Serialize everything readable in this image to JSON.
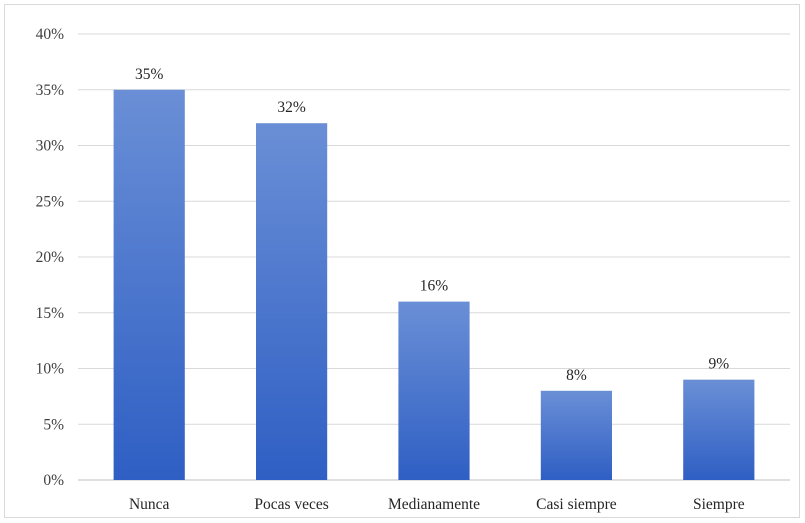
{
  "chart_data": {
    "type": "bar",
    "categories": [
      "Nunca",
      "Pocas veces",
      "Medianamente",
      "Casi siempre",
      "Siempre"
    ],
    "values": [
      35,
      32,
      16,
      8,
      9
    ],
    "data_labels": [
      "35%",
      "32%",
      "16%",
      "8%",
      "9%"
    ],
    "yticks": [
      0,
      5,
      10,
      15,
      20,
      25,
      30,
      35,
      40
    ],
    "ytick_labels": [
      "0%",
      "5%",
      "10%",
      "15%",
      "20%",
      "25%",
      "30%",
      "35%",
      "40%"
    ],
    "ylim": [
      0,
      40
    ],
    "grid": true,
    "legend": "none",
    "title": "",
    "xlabel": "",
    "ylabel": "",
    "colors": {
      "bar_top": "#6a8fd6",
      "bar_bottom": "#2f5fc4",
      "gridline": "#d9d9d9",
      "axis_line": "#bfbfbf"
    }
  }
}
